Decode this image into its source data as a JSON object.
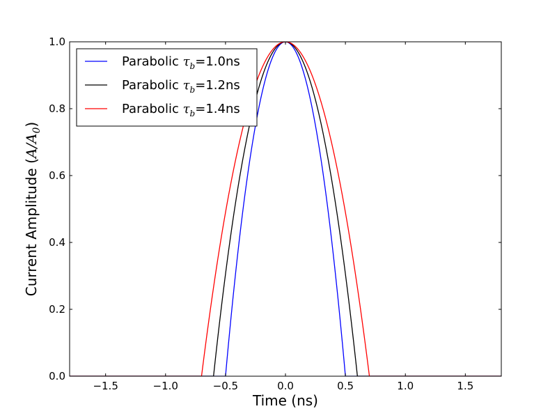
{
  "chart_data": {
    "type": "line",
    "title": "",
    "xlabel": "Time (ns)",
    "ylabel": {
      "prefix": "Current Amplitude (",
      "math": "A/A",
      "math_sub": "0",
      "suffix": ")"
    },
    "xlim": [
      -1.8,
      1.8
    ],
    "ylim": [
      0.0,
      1.0
    ],
    "xticks": [
      -1.5,
      -1.0,
      -0.5,
      0.0,
      0.5,
      1.0,
      1.5
    ],
    "xtick_labels": [
      "−1.5",
      "−1.0",
      "−0.5",
      "0.0",
      "0.5",
      "1.0",
      "1.5"
    ],
    "yticks": [
      0.0,
      0.2,
      0.4,
      0.6,
      0.8,
      1.0
    ],
    "ytick_labels": [
      "0.0",
      "0.2",
      "0.4",
      "0.6",
      "0.8",
      "1.0"
    ],
    "grid": false,
    "legend_position": "top-left",
    "series": [
      {
        "name": "Parabolic τb=1.0ns",
        "label_prefix": "Parabolic ",
        "label_math": "τ",
        "label_sub": "b",
        "label_suffix": "=1.0ns",
        "color": "#0000ff",
        "half_width": 0.5,
        "peak": 1.0
      },
      {
        "name": "Parabolic τb=1.2ns",
        "label_prefix": "Parabolic ",
        "label_math": "τ",
        "label_sub": "b",
        "label_suffix": "=1.2ns",
        "color": "#000000",
        "half_width": 0.6,
        "peak": 1.0
      },
      {
        "name": "Parabolic τb=1.4ns",
        "label_prefix": "Parabolic ",
        "label_math": "τ",
        "label_sub": "b",
        "label_suffix": "=1.4ns",
        "color": "#ff0000",
        "half_width": 0.7,
        "peak": 1.0
      }
    ]
  }
}
